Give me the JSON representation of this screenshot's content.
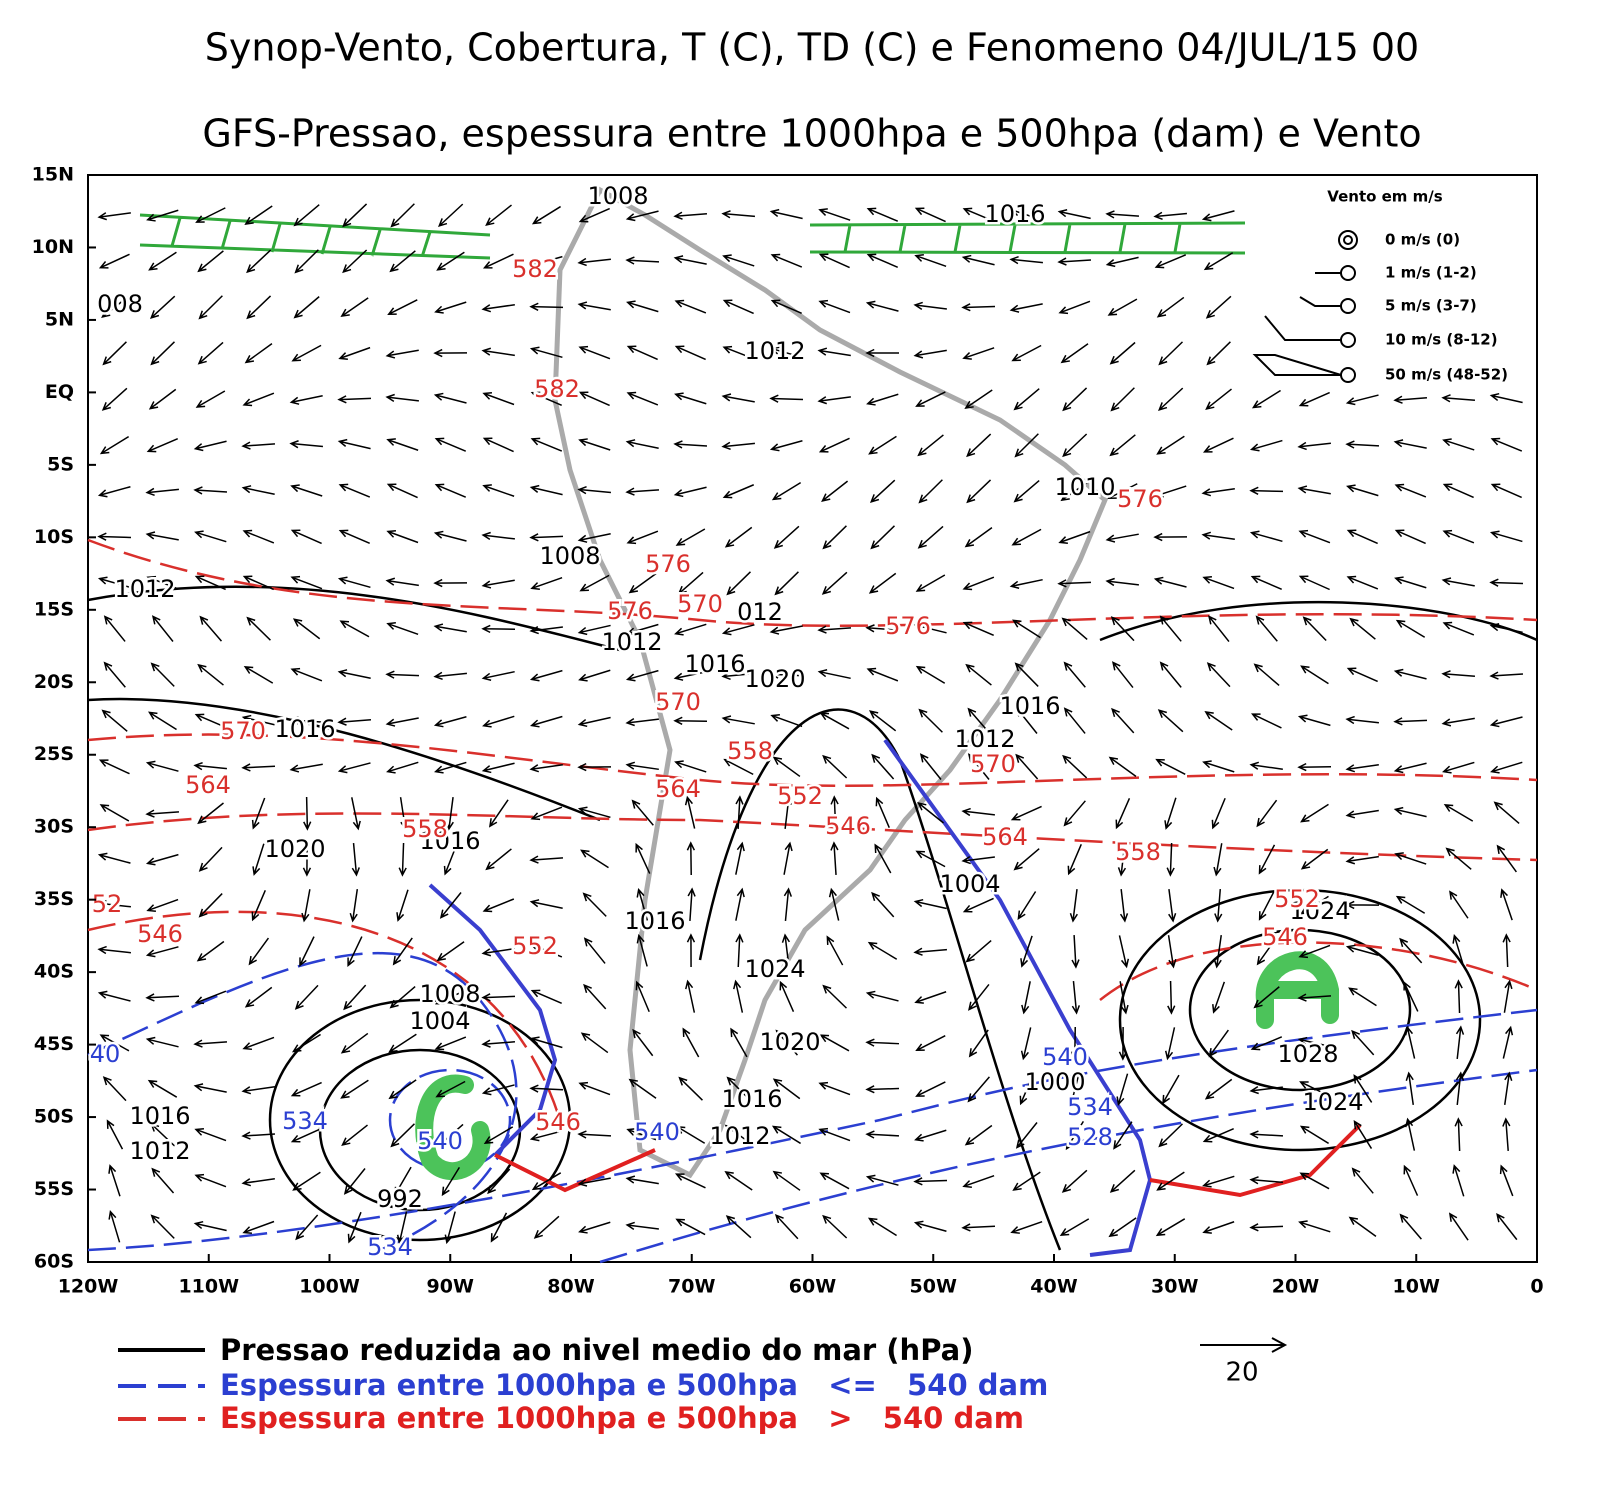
{
  "title": "Synop-Vento, Cobertura, T (C), TD (C) e Fenomeno 04/JUL/15 00",
  "subtitle": "GFS-Pressao, espessura entre 1000hpa e 500hpa (dam) e Vento",
  "map": {
    "lat_labels": [
      "15N",
      "10N",
      "5N",
      "EQ",
      "5S",
      "10S",
      "15S",
      "20S",
      "25S",
      "30S",
      "35S",
      "40S",
      "45S",
      "50S",
      "55S",
      "60S"
    ],
    "lon_labels": [
      "120W",
      "110W",
      "100W",
      "90W",
      "80W",
      "70W",
      "60W",
      "50W",
      "40W",
      "30W",
      "20W",
      "10W",
      "0"
    ]
  },
  "wind_key": {
    "title": "Vento em m/s",
    "items": [
      "0 m/s (0)",
      "1 m/s (1-2)",
      "5 m/s (3-7)",
      "10 m/s (8-12)",
      "50 m/s (48-52)"
    ]
  },
  "pressure_labels": [
    "1008",
    "1016",
    "008",
    "1012",
    "1010",
    "1008",
    "1012",
    "012",
    "1012",
    "1016",
    "1020",
    "1016",
    "1016",
    "1012",
    "1020",
    "1016",
    "1004",
    "1024",
    "1016",
    "1024",
    "1008",
    "1004",
    "1020",
    "1028",
    "1000",
    "1016",
    "1016",
    "1024",
    "1012",
    "1012",
    "992"
  ],
  "thickness_labels_red": [
    "582",
    "582",
    "576",
    "576",
    "576",
    "570",
    "576",
    "570",
    "570",
    "558",
    "570",
    "564",
    "564",
    "552",
    "546",
    "558",
    "564",
    "558",
    "52",
    "552",
    "546",
    "546",
    "552",
    "546"
  ],
  "thickness_labels_blue": [
    "40",
    "540",
    "534",
    "534",
    "540",
    "540",
    "528",
    "534"
  ],
  "legend": [
    "Pressao reduzida ao nivel medio do mar (hPa)",
    "Espessura entre 1000hpa e 500hpa   <=   540 dam",
    "Espessura entre 1000hpa e 500hpa   >   540 dam"
  ],
  "vector_scale": "20"
}
